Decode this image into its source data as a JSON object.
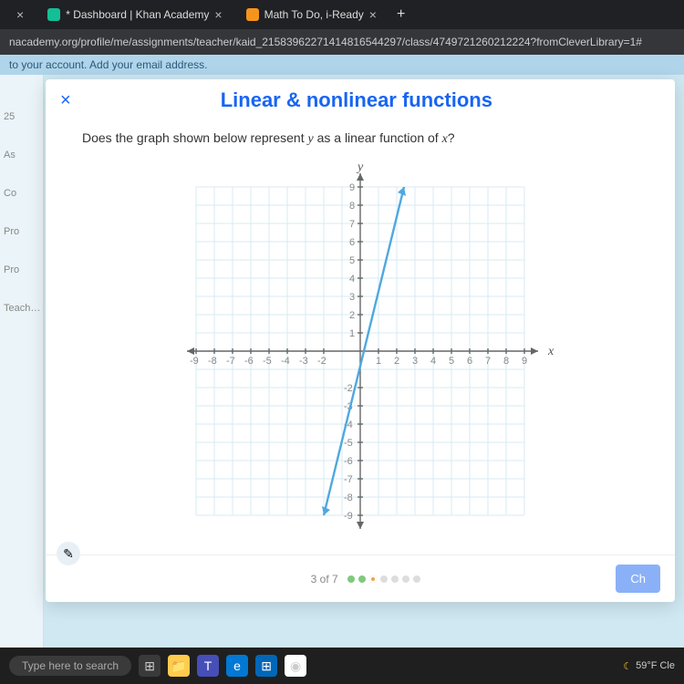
{
  "browser": {
    "tabs": [
      {
        "title": "",
        "fav_color": "#555"
      },
      {
        "title": "* Dashboard | Khan Academy",
        "fav_color": "#14bf96"
      },
      {
        "title": "Math To Do, i-Ready",
        "fav_color": "#f7941d"
      }
    ],
    "url": "nacademy.org/profile/me/assignments/teacher/kaid_21583962271414816544297/class/4749721260212224?fromCleverLibrary=1#"
  },
  "banner_text": "to your account. Add your email address.",
  "side_items": [
    "",
    "25",
    "As",
    "",
    "Co",
    "",
    "Pro",
    "Pro",
    "Teachers"
  ],
  "modal": {
    "title": "Linear & nonlinear functions",
    "question_a": "Does the graph shown below represent ",
    "var_y": "y",
    "question_b": " as a linear function of ",
    "var_x": "x",
    "question_c": "?",
    "progress_label": "3 of 7",
    "check_label": "Ch"
  },
  "chart": {
    "type": "line",
    "x_label": "x",
    "y_label": "y",
    "xlim": [
      -9,
      9
    ],
    "ylim": [
      -9,
      9
    ],
    "tick_step": 1,
    "grid_color": "#d7ebf3",
    "axis_color": "#666666",
    "line_color": "#4fa8e0",
    "background": "#ffffff",
    "line_points": [
      [
        -2,
        -9
      ],
      [
        2.4,
        9
      ]
    ],
    "x_ticks_right": [
      1,
      2,
      3,
      4,
      5,
      6,
      7,
      8,
      9
    ],
    "x_ticks_left": [
      -9,
      -8,
      -7,
      -6,
      -5,
      -4,
      -3,
      -2
    ],
    "y_ticks_up": [
      1,
      2,
      3,
      4,
      5,
      6,
      7,
      8,
      9
    ],
    "y_ticks_down": [
      -2,
      -3,
      -4,
      -5,
      -6,
      -7,
      -8,
      -9
    ]
  },
  "taskbar": {
    "search_placeholder": "Type here to search",
    "weather": "59°F Cle"
  }
}
